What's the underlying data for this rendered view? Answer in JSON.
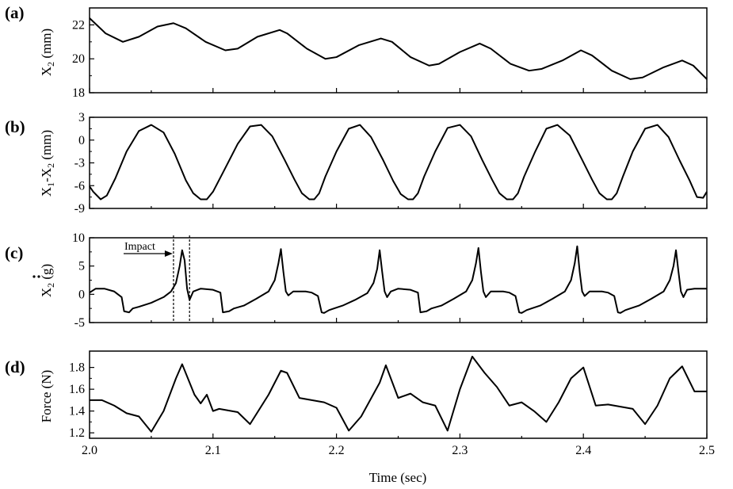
{
  "chart_data": [
    {
      "type": "line",
      "panel_label": "(a)",
      "ylabel": "X",
      "ylabel_sub": "2",
      "ylabel_unit": " (mm)",
      "xlim": [
        2.0,
        2.5
      ],
      "ylim": [
        18,
        23
      ],
      "yticks": [
        18,
        20,
        22
      ],
      "series": [
        {
          "x": [
            2.0,
            2.013,
            2.027,
            2.04,
            2.055,
            2.068,
            2.078,
            2.094,
            2.11,
            2.12,
            2.136,
            2.154,
            2.16,
            2.176,
            2.191,
            2.2,
            2.218,
            2.236,
            2.245,
            2.26,
            2.275,
            2.283,
            2.3,
            2.316,
            2.325,
            2.341,
            2.356,
            2.366,
            2.383,
            2.398,
            2.407,
            2.423,
            2.438,
            2.448,
            2.465,
            2.48,
            2.489,
            2.5
          ],
          "y": [
            22.4,
            21.5,
            21.0,
            21.3,
            21.9,
            22.1,
            21.8,
            21.0,
            20.5,
            20.6,
            21.3,
            21.7,
            21.5,
            20.6,
            20.0,
            20.1,
            20.8,
            21.2,
            21.0,
            20.1,
            19.6,
            19.7,
            20.4,
            20.9,
            20.6,
            19.7,
            19.3,
            19.4,
            19.9,
            20.5,
            20.2,
            19.3,
            18.8,
            18.9,
            19.5,
            19.9,
            19.6,
            18.8
          ]
        }
      ]
    },
    {
      "type": "line",
      "panel_label": "(b)",
      "ylabel": "X",
      "ylabel_sub": "1",
      "ylabel_mid": "-X",
      "ylabel_sub2": "2",
      "ylabel_unit": " (mm)",
      "xlim": [
        2.0,
        2.5
      ],
      "ylim": [
        -9,
        3
      ],
      "yticks": [
        -9,
        -6,
        -3,
        0,
        3
      ],
      "series": [
        {
          "x": [
            2.0,
            2.003,
            2.009,
            2.014,
            2.021,
            2.03,
            2.04,
            2.05,
            2.06,
            2.069,
            2.078,
            2.084,
            2.09,
            2.095,
            2.1,
            2.108,
            2.12,
            2.13,
            2.139,
            2.148,
            2.158,
            2.166,
            2.172,
            2.178,
            2.182,
            2.186,
            2.191,
            2.2,
            2.21,
            2.219,
            2.228,
            2.238,
            2.246,
            2.252,
            2.258,
            2.262,
            2.266,
            2.271,
            2.28,
            2.29,
            2.3,
            2.309,
            2.318,
            2.326,
            2.332,
            2.338,
            2.343,
            2.347,
            2.352,
            2.361,
            2.37,
            2.379,
            2.389,
            2.399,
            2.407,
            2.413,
            2.419,
            2.423,
            2.427,
            2.432,
            2.44,
            2.45,
            2.46,
            2.469,
            2.478,
            2.486,
            2.492,
            2.497,
            2.5
          ],
          "y": [
            -6.1,
            -6.8,
            -7.8,
            -7.3,
            -5.0,
            -1.5,
            1.2,
            2.0,
            1.0,
            -1.8,
            -5.3,
            -7.0,
            -7.8,
            -7.8,
            -6.8,
            -4.3,
            -0.5,
            1.8,
            2.0,
            0.5,
            -2.6,
            -5.2,
            -7.0,
            -7.8,
            -7.8,
            -7.0,
            -4.8,
            -1.5,
            1.5,
            2.0,
            0.4,
            -2.7,
            -5.4,
            -7.1,
            -7.8,
            -7.8,
            -7.0,
            -4.8,
            -1.5,
            1.6,
            2.0,
            0.5,
            -2.6,
            -5.2,
            -7.0,
            -7.8,
            -7.8,
            -7.0,
            -4.8,
            -1.5,
            1.5,
            2.0,
            0.6,
            -2.6,
            -5.2,
            -7.0,
            -7.8,
            -7.8,
            -7.0,
            -4.8,
            -1.5,
            1.5,
            2.0,
            0.4,
            -2.7,
            -5.3,
            -7.5,
            -7.6,
            -6.8
          ]
        }
      ]
    },
    {
      "type": "line",
      "panel_label": "(c)",
      "ylabel": "X",
      "ylabel_sub": "2",
      "ylabel_unit": " (g)",
      "xlim": [
        2.0,
        2.5
      ],
      "ylim": [
        -5,
        10
      ],
      "yticks": [
        -5,
        0,
        5,
        10
      ],
      "annotation": {
        "text": "Impact",
        "x_start": 2.068,
        "x_end": 2.081
      },
      "series": [
        {
          "x": [
            2.0,
            2.005,
            2.012,
            2.02,
            2.026,
            2.028,
            2.032,
            2.035,
            2.04,
            2.05,
            2.06,
            2.066,
            2.07,
            2.073,
            2.075,
            2.077,
            2.079,
            2.081,
            2.084,
            2.09,
            2.1,
            2.106,
            2.108,
            2.113,
            2.117,
            2.125,
            2.135,
            2.145,
            2.15,
            2.153,
            2.155,
            2.157,
            2.159,
            2.161,
            2.165,
            2.175,
            2.18,
            2.185,
            2.188,
            2.19,
            2.194,
            2.198,
            2.205,
            2.215,
            2.225,
            2.23,
            2.233,
            2.235,
            2.237,
            2.239,
            2.241,
            2.244,
            2.25,
            2.26,
            2.266,
            2.268,
            2.273,
            2.277,
            2.285,
            2.295,
            2.305,
            2.31,
            2.313,
            2.315,
            2.317,
            2.319,
            2.321,
            2.325,
            2.335,
            2.34,
            2.345,
            2.348,
            2.35,
            2.354,
            2.358,
            2.365,
            2.375,
            2.385,
            2.39,
            2.393,
            2.395,
            2.397,
            2.399,
            2.401,
            2.405,
            2.415,
            2.42,
            2.425,
            2.428,
            2.43,
            2.434,
            2.438,
            2.445,
            2.455,
            2.465,
            2.47,
            2.473,
            2.475,
            2.477,
            2.479,
            2.481,
            2.484,
            2.49,
            2.5
          ],
          "y": [
            0.3,
            1.0,
            1.0,
            0.5,
            -0.5,
            -3.0,
            -3.2,
            -2.5,
            -2.2,
            -1.5,
            -0.5,
            0.5,
            2.0,
            5.0,
            7.8,
            6.0,
            1.0,
            -1.0,
            0.5,
            1.0,
            0.8,
            0.3,
            -3.2,
            -3.0,
            -2.5,
            -2.0,
            -0.8,
            0.5,
            2.5,
            5.5,
            8.0,
            4.0,
            0.5,
            -0.2,
            0.5,
            0.5,
            0.3,
            -0.3,
            -3.2,
            -3.3,
            -2.8,
            -2.5,
            -2.0,
            -1.0,
            0.2,
            2.0,
            4.5,
            7.8,
            4.0,
            0.5,
            -0.5,
            0.5,
            1.0,
            0.8,
            0.3,
            -3.2,
            -3.0,
            -2.5,
            -2.0,
            -0.8,
            0.5,
            2.5,
            5.5,
            8.2,
            4.0,
            0.5,
            -0.5,
            0.5,
            0.5,
            0.3,
            -0.3,
            -3.2,
            -3.3,
            -2.8,
            -2.5,
            -2.0,
            -0.8,
            0.5,
            2.5,
            5.5,
            8.5,
            4.0,
            0.5,
            -0.3,
            0.5,
            0.5,
            0.3,
            -0.3,
            -3.2,
            -3.3,
            -2.8,
            -2.5,
            -2.0,
            -0.8,
            0.5,
            2.5,
            5.0,
            7.8,
            4.0,
            0.5,
            -0.5,
            0.8,
            1.0,
            1.0
          ]
        }
      ]
    },
    {
      "type": "line",
      "panel_label": "(d)",
      "ylabel": "Force (N)",
      "xlabel": "Time (sec)",
      "xlim": [
        2.0,
        2.5
      ],
      "ylim": [
        1.15,
        1.95
      ],
      "yticks": [
        1.2,
        1.4,
        1.6,
        1.8
      ],
      "xticks": [
        2.0,
        2.1,
        2.2,
        2.3,
        2.4,
        2.5
      ],
      "xtick_labels": [
        "2.0",
        "2.1",
        "2.2",
        "2.3",
        "2.4",
        "2.5"
      ],
      "series": [
        {
          "x": [
            2.0,
            2.01,
            2.02,
            2.03,
            2.04,
            2.05,
            2.06,
            2.07,
            2.075,
            2.085,
            2.09,
            2.095,
            2.1,
            2.105,
            2.12,
            2.13,
            2.145,
            2.155,
            2.16,
            2.17,
            2.18,
            2.19,
            2.2,
            2.21,
            2.22,
            2.235,
            2.24,
            2.25,
            2.26,
            2.27,
            2.28,
            2.29,
            2.3,
            2.31,
            2.32,
            2.33,
            2.34,
            2.35,
            2.36,
            2.37,
            2.38,
            2.39,
            2.4,
            2.41,
            2.42,
            2.43,
            2.44,
            2.45,
            2.46,
            2.47,
            2.48,
            2.49,
            2.5
          ],
          "y": [
            1.5,
            1.5,
            1.45,
            1.38,
            1.35,
            1.21,
            1.4,
            1.7,
            1.83,
            1.55,
            1.47,
            1.55,
            1.4,
            1.42,
            1.39,
            1.28,
            1.55,
            1.77,
            1.75,
            1.52,
            1.5,
            1.48,
            1.43,
            1.22,
            1.35,
            1.66,
            1.82,
            1.52,
            1.56,
            1.48,
            1.45,
            1.22,
            1.6,
            1.9,
            1.75,
            1.62,
            1.45,
            1.48,
            1.4,
            1.3,
            1.48,
            1.7,
            1.8,
            1.45,
            1.46,
            1.44,
            1.42,
            1.28,
            1.45,
            1.7,
            1.81,
            1.58,
            1.58
          ]
        }
      ]
    }
  ]
}
